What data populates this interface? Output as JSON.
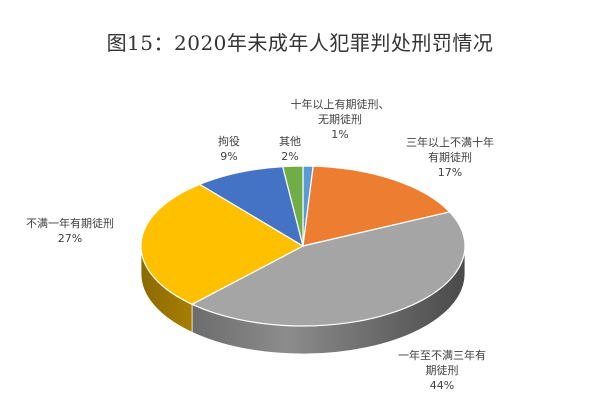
{
  "chart_data": {
    "type": "pie",
    "style": "3d",
    "title": "图15：2020年未成年人犯罪判处刑罚情况",
    "slices": [
      {
        "label_lines": [
          "十年以上有期徒刑、",
          "无期徒刑"
        ],
        "value": 1,
        "value_text": "1%",
        "color": "#5B9BD5"
      },
      {
        "label_lines": [
          "三年以上不满十年",
          "有期徒刑"
        ],
        "value": 17,
        "value_text": "17%",
        "color": "#ED7D31"
      },
      {
        "label_lines": [
          "一年至不满三年有",
          "期徒刑"
        ],
        "value": 44,
        "value_text": "44%",
        "color": "#A5A5A5"
      },
      {
        "label_lines": [
          "不满一年有期徒刑"
        ],
        "value": 27,
        "value_text": "27%",
        "color": "#FFC000"
      },
      {
        "label_lines": [
          "拘役"
        ],
        "value": 9,
        "value_text": "9%",
        "color": "#4472C4"
      },
      {
        "label_lines": [
          "其他"
        ],
        "value": 2,
        "value_text": "2%",
        "color": "#70AD47"
      }
    ],
    "legend": "none",
    "data_labels": "outside"
  }
}
